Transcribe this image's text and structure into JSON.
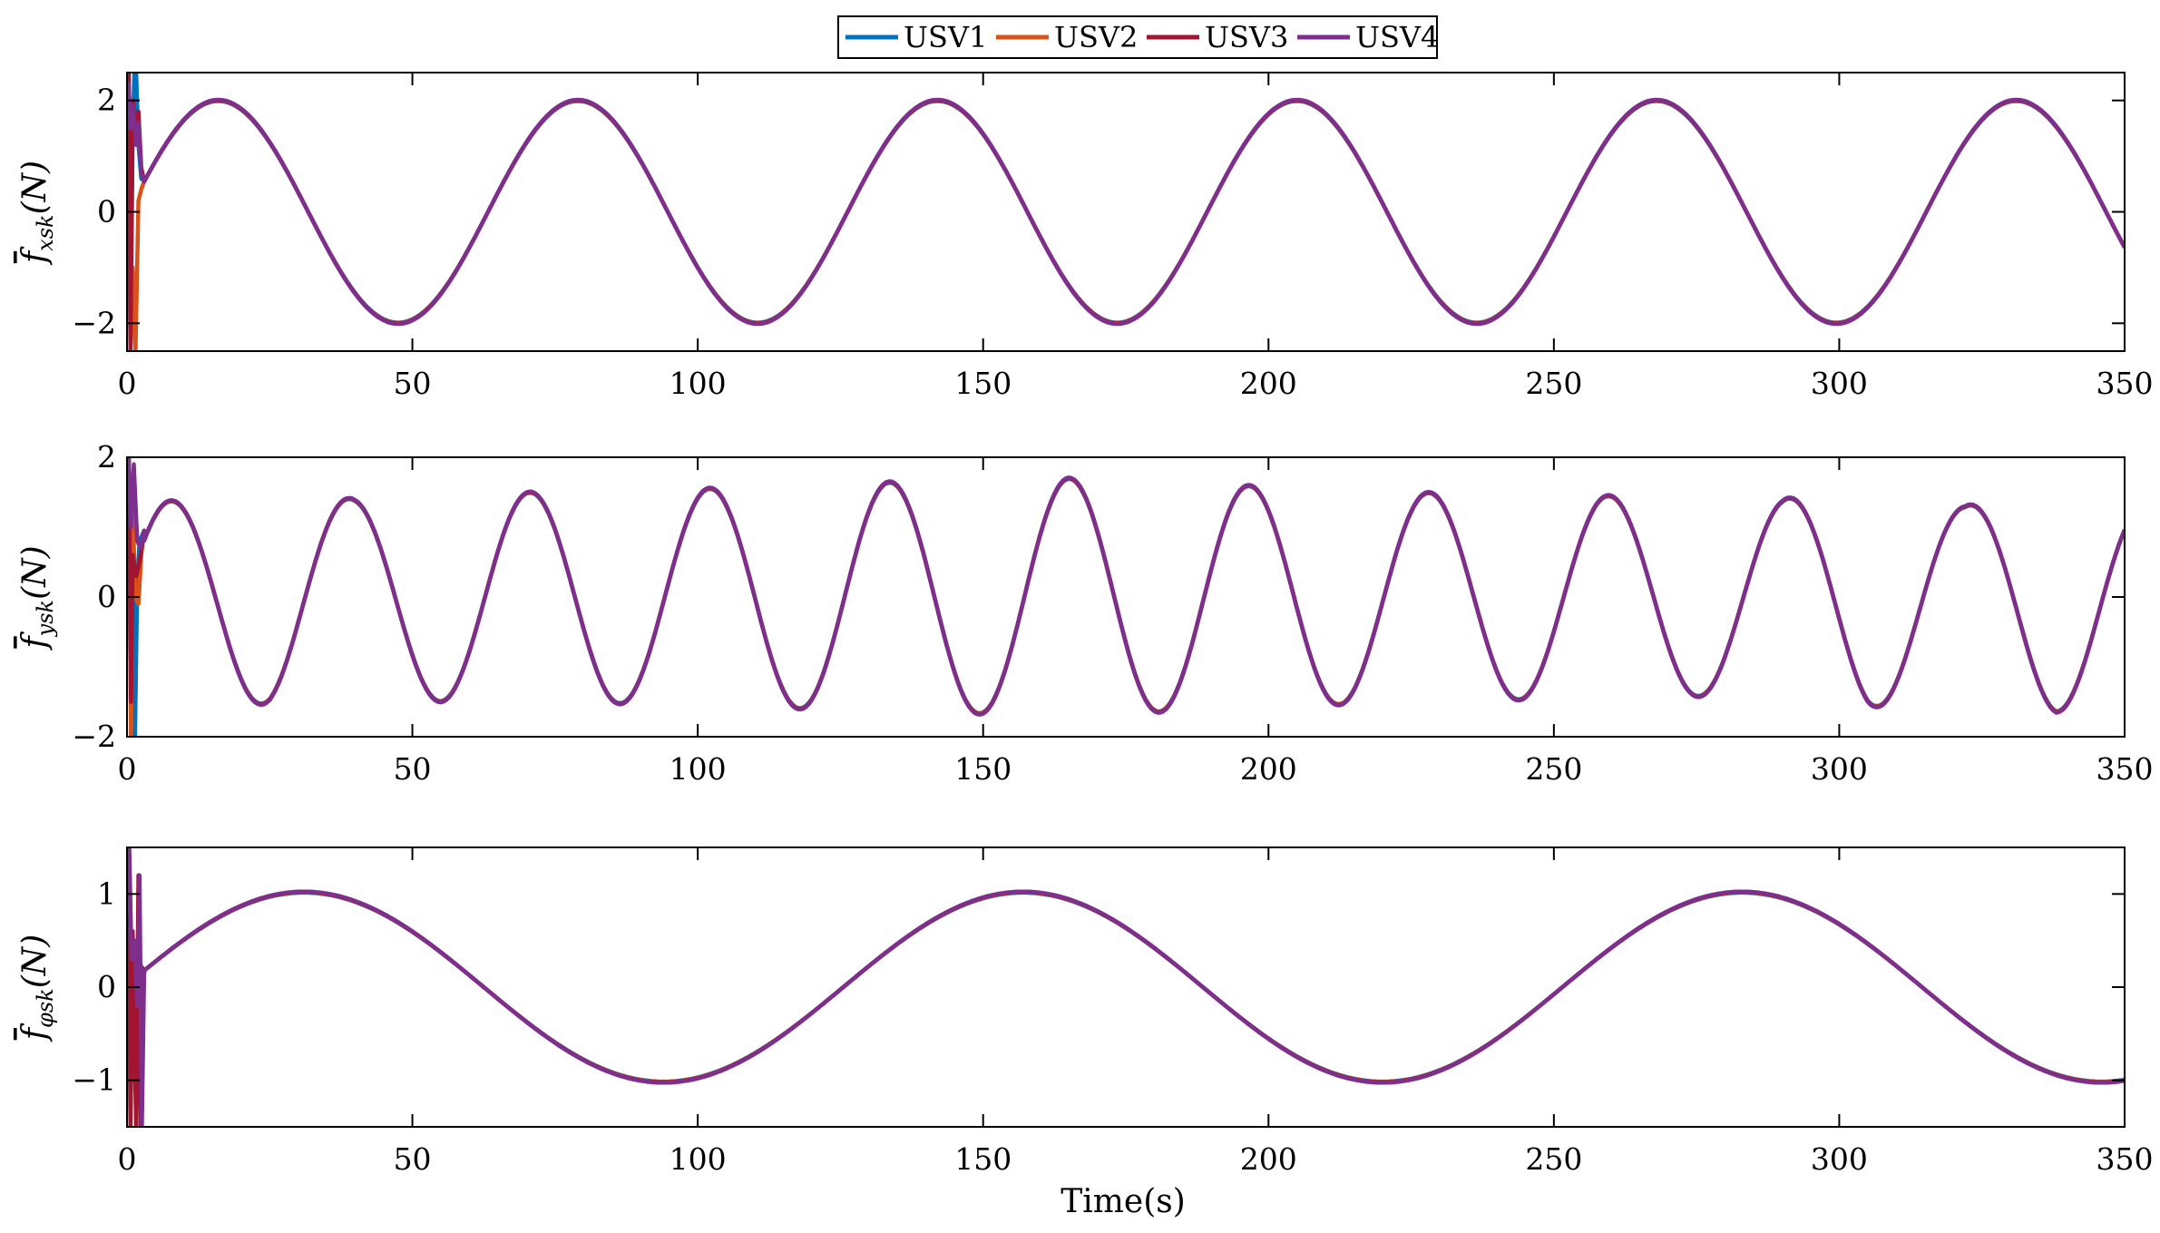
{
  "chart_data": {
    "type": "line",
    "legend": {
      "placement": "top-center",
      "entries": [
        {
          "name": "USV1",
          "color": "#0072BD"
        },
        {
          "name": "USV2",
          "color": "#D95319"
        },
        {
          "name": "USV3",
          "color": "#A2142F"
        },
        {
          "name": "USV4",
          "color": "#7E2F8E"
        }
      ]
    },
    "xlabel": "Time(s)",
    "xlim": [
      0,
      350
    ],
    "xticks": [
      "0",
      "50",
      "100",
      "150",
      "200",
      "250",
      "300",
      "350"
    ],
    "grid": false,
    "subplots": [
      {
        "ylabel_base": "f",
        "ylabel_sub": "xsk",
        "ylabel_unit": "(N)",
        "ylim": [
          -2.5,
          2.5
        ],
        "yticks": [
          {
            "v": -2,
            "t": "−2"
          },
          {
            "v": 0,
            "t": "0"
          },
          {
            "v": 2,
            "t": "2"
          }
        ],
        "signal": {
          "components": [
            {
              "amp": 2.0,
              "period": 63.0,
              "peak_t": 16.0
            }
          ],
          "transient_end": 3.0,
          "transients": [
            {
              "name": "USV1",
              "points": [
                [
                  0,
                  0.5
                ],
                [
                  0.3,
                  2.5
                ],
                [
                  0.6,
                  -2.5
                ],
                [
                  1.0,
                  1.5
                ],
                [
                  1.3,
                  2.5
                ],
                [
                  1.6,
                  2.5
                ],
                [
                  2.0,
                  1.2
                ],
                [
                  2.5,
                  0.6
                ],
                [
                  3.0,
                  0.55
                ]
              ]
            },
            {
              "name": "USV2",
              "points": [
                [
                  0,
                  0.3
                ],
                [
                  0.3,
                  2.5
                ],
                [
                  0.6,
                  -2.5
                ],
                [
                  1.0,
                  -1.0
                ],
                [
                  1.5,
                  -2.5
                ],
                [
                  2.0,
                  0.2
                ],
                [
                  2.5,
                  0.4
                ],
                [
                  3.0,
                  0.55
                ]
              ]
            },
            {
              "name": "USV3",
              "points": [
                [
                  0,
                  1.5
                ],
                [
                  0.3,
                  2.5
                ],
                [
                  0.6,
                  -2.5
                ],
                [
                  1.0,
                  2.0
                ],
                [
                  1.6,
                  1.4
                ],
                [
                  2.0,
                  1.8
                ],
                [
                  2.5,
                  0.8
                ],
                [
                  3.0,
                  0.55
                ]
              ]
            },
            {
              "name": "USV4",
              "points": [
                [
                  0,
                  1.8
                ],
                [
                  0.3,
                  2.3
                ],
                [
                  0.6,
                  1.5
                ],
                [
                  1.0,
                  1.9
                ],
                [
                  1.6,
                  1.2
                ],
                [
                  2.0,
                  1.6
                ],
                [
                  2.5,
                  0.7
                ],
                [
                  3.0,
                  0.55
                ]
              ]
            }
          ]
        }
      },
      {
        "ylabel_base": "f",
        "ylabel_sub": "ysk",
        "ylabel_unit": "(N)",
        "ylim": [
          -2,
          2
        ],
        "yticks": [
          {
            "v": -2,
            "t": "−2"
          },
          {
            "v": 0,
            "t": "0"
          },
          {
            "v": 2,
            "t": "2"
          }
        ],
        "signal": {
          "components": [
            {
              "amp": 1.5,
              "period": 31.5,
              "peak_t": 7.6
            }
          ],
          "envelope": [
            [
              0,
              1.3
            ],
            [
              25,
              1.55
            ],
            [
              40,
              1.4
            ],
            [
              55,
              1.5
            ],
            [
              70,
              1.5
            ],
            [
              100,
              1.55
            ],
            [
              135,
              1.65
            ],
            [
              165,
              1.7
            ],
            [
              195,
              1.6
            ],
            [
              225,
              1.5
            ],
            [
              260,
              1.45
            ],
            [
              290,
              1.4
            ],
            [
              305,
              1.6
            ],
            [
              322,
              1.3
            ],
            [
              338,
              1.65
            ],
            [
              350,
              1.4
            ]
          ],
          "transient_end": 3.0,
          "transients": [
            {
              "name": "USV1",
              "points": [
                [
                  0,
                  0.5
                ],
                [
                  0.3,
                  2.0
                ],
                [
                  0.7,
                  -2.0
                ],
                [
                  1.0,
                  0.5
                ],
                [
                  1.4,
                  -2.0
                ],
                [
                  1.8,
                  0.2
                ],
                [
                  2.2,
                  0.8
                ],
                [
                  3.0,
                  0.95
                ]
              ]
            },
            {
              "name": "USV2",
              "points": [
                [
                  0,
                  0.3
                ],
                [
                  0.3,
                  2.0
                ],
                [
                  0.7,
                  -2.0
                ],
                [
                  1.0,
                  1.2
                ],
                [
                  1.5,
                  0.0
                ],
                [
                  2.0,
                  -0.1
                ],
                [
                  2.5,
                  0.6
                ],
                [
                  3.0,
                  0.95
                ]
              ]
            },
            {
              "name": "USV3",
              "points": [
                [
                  0,
                  1.2
                ],
                [
                  0.3,
                  2.0
                ],
                [
                  0.7,
                  -1.5
                ],
                [
                  1.0,
                  0.6
                ],
                [
                  1.6,
                  0.3
                ],
                [
                  2.2,
                  0.5
                ],
                [
                  3.0,
                  0.95
                ]
              ]
            },
            {
              "name": "USV4",
              "points": [
                [
                  0,
                  1.5
                ],
                [
                  0.3,
                  2.0
                ],
                [
                  0.7,
                  1.0
                ],
                [
                  1.2,
                  1.9
                ],
                [
                  1.8,
                  0.8
                ],
                [
                  2.4,
                  0.7
                ],
                [
                  3.0,
                  0.95
                ]
              ]
            }
          ]
        }
      },
      {
        "ylabel_base": "f",
        "ylabel_sub": "φsk",
        "ylabel_unit": "(N)",
        "ylim": [
          -1.5,
          1.5
        ],
        "yticks": [
          {
            "v": -1,
            "t": "−1"
          },
          {
            "v": 0,
            "t": "0"
          },
          {
            "v": 1,
            "t": "1"
          }
        ],
        "signal": {
          "components": [
            {
              "amp": 1.02,
              "period": 126.0,
              "peak_t": 31.0
            }
          ],
          "transient_end": 3.0,
          "transients": [
            {
              "name": "USV1",
              "points": [
                [
                  0,
                  0.2
                ],
                [
                  0.3,
                  1.5
                ],
                [
                  0.6,
                  -1.5
                ],
                [
                  1.0,
                  0.4
                ],
                [
                  1.5,
                  -0.3
                ],
                [
                  2.0,
                  0.2
                ],
                [
                  2.5,
                  0.15
                ],
                [
                  3.0,
                  0.15
                ]
              ]
            },
            {
              "name": "USV2",
              "points": [
                [
                  0,
                  0.1
                ],
                [
                  0.3,
                  1.5
                ],
                [
                  0.6,
                  -1.5
                ],
                [
                  1.0,
                  0.5
                ],
                [
                  1.6,
                  -1.5
                ],
                [
                  2.0,
                  0.3
                ],
                [
                  3.0,
                  0.15
                ]
              ]
            },
            {
              "name": "USV3",
              "points": [
                [
                  0,
                  0.5
                ],
                [
                  0.3,
                  1.5
                ],
                [
                  0.6,
                  -1.5
                ],
                [
                  1.0,
                  0.6
                ],
                [
                  1.6,
                  -1.5
                ],
                [
                  2.0,
                  1.2
                ],
                [
                  2.4,
                  -1.5
                ],
                [
                  2.8,
                  0.2
                ],
                [
                  3.0,
                  0.15
                ]
              ]
            },
            {
              "name": "USV4",
              "points": [
                [
                  0,
                  0.8
                ],
                [
                  0.4,
                  1.5
                ],
                [
                  0.8,
                  0.3
                ],
                [
                  1.3,
                  0.5
                ],
                [
                  1.8,
                  -0.2
                ],
                [
                  2.2,
                  1.2
                ],
                [
                  2.6,
                  -1.5
                ],
                [
                  3.0,
                  0.15
                ]
              ]
            }
          ]
        }
      }
    ]
  }
}
